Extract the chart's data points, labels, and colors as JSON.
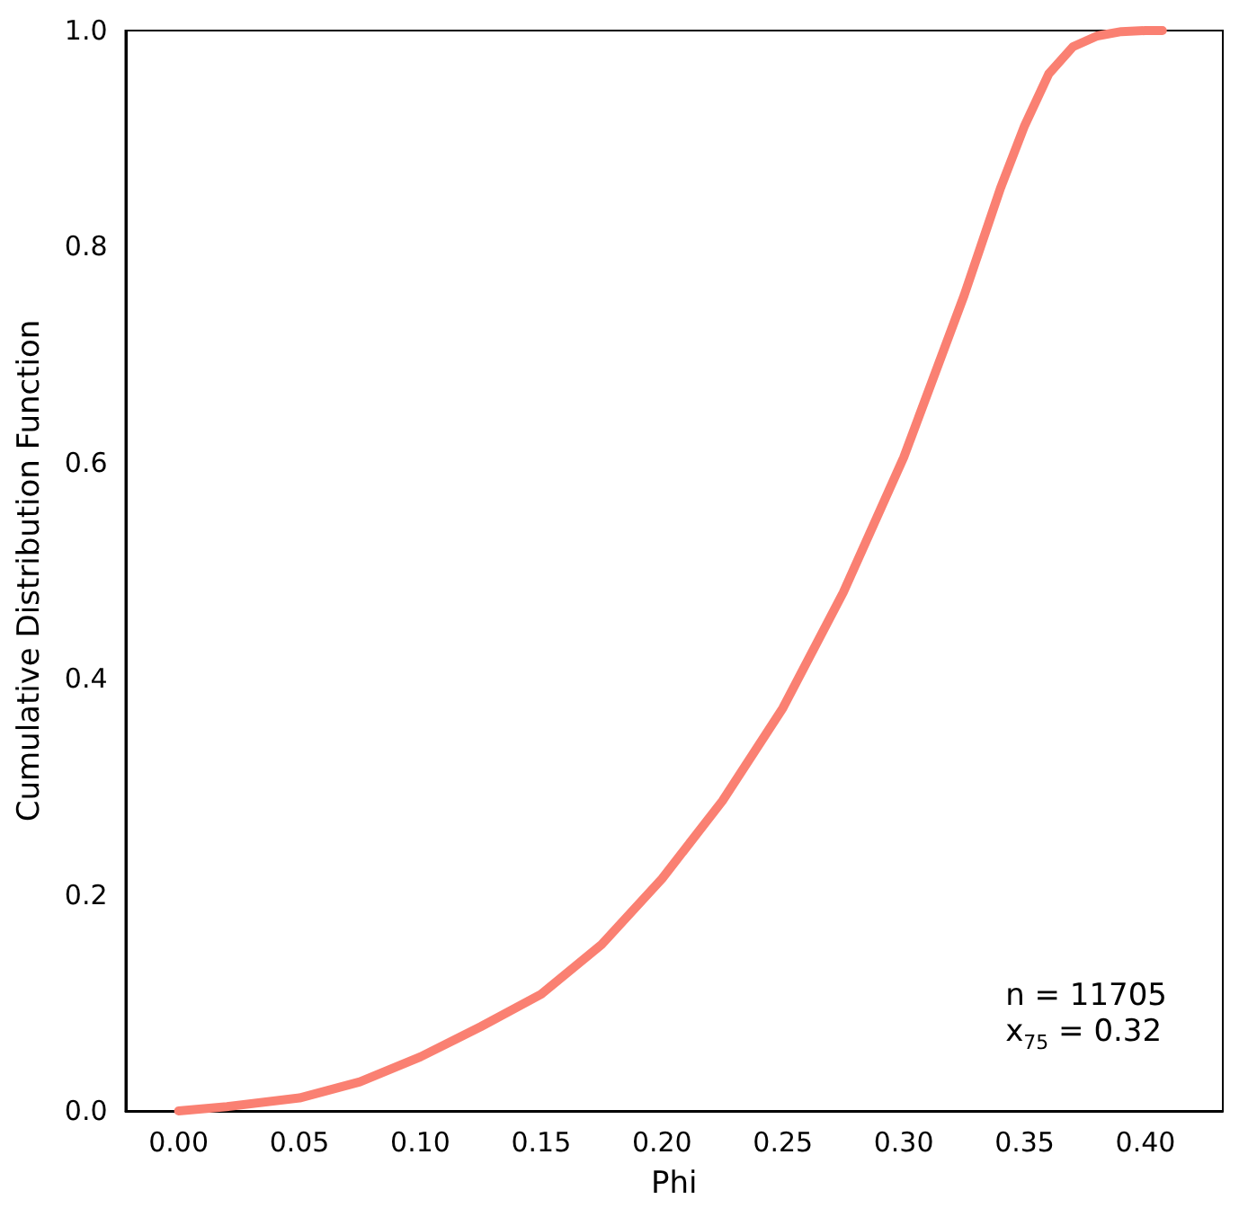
{
  "chart_data": {
    "type": "line",
    "xlabel": "Phi",
    "ylabel": "Cumulative Distribution Function",
    "x": [
      0.0,
      0.02,
      0.05,
      0.075,
      0.1,
      0.125,
      0.15,
      0.175,
      0.2,
      0.225,
      0.25,
      0.275,
      0.3,
      0.325,
      0.34,
      0.35,
      0.36,
      0.37,
      0.38,
      0.39,
      0.4,
      0.407
    ],
    "series": [
      {
        "color": "#fa8072",
        "values": [
          0.0,
          0.004,
          0.012,
          0.027,
          0.05,
          0.078,
          0.108,
          0.154,
          0.215,
          0.287,
          0.373,
          0.48,
          0.605,
          0.755,
          0.854,
          0.912,
          0.96,
          0.985,
          0.995,
          0.999,
          1.0,
          1.0
        ]
      }
    ],
    "xlim": [
      -0.022,
      0.432
    ],
    "ylim": [
      0,
      1
    ],
    "xticks": [
      {
        "value": 0,
        "label": "0.00"
      },
      {
        "value": 0.05,
        "label": "0.05"
      },
      {
        "value": 0.1,
        "label": "0.10"
      },
      {
        "value": 0.15,
        "label": "0.15"
      },
      {
        "value": 0.2,
        "label": "0.20"
      },
      {
        "value": 0.25,
        "label": "0.25"
      },
      {
        "value": 0.3,
        "label": "0.30"
      },
      {
        "value": 0.35,
        "label": "0.35"
      },
      {
        "value": 0.4,
        "label": "0.40"
      }
    ],
    "yticks": [
      {
        "value": 0,
        "label": "0.0"
      },
      {
        "value": 0.2,
        "label": "0.2"
      },
      {
        "value": 0.4,
        "label": "0.4"
      },
      {
        "value": 0.6,
        "label": "0.6"
      },
      {
        "value": 0.8,
        "label": "0.8"
      },
      {
        "value": 1,
        "label": "1.0"
      }
    ],
    "annotations": [
      "n = 11705",
      "x$_{75}$ = 0.32"
    ],
    "grid": false,
    "marker": "none",
    "line_style": "solid"
  }
}
